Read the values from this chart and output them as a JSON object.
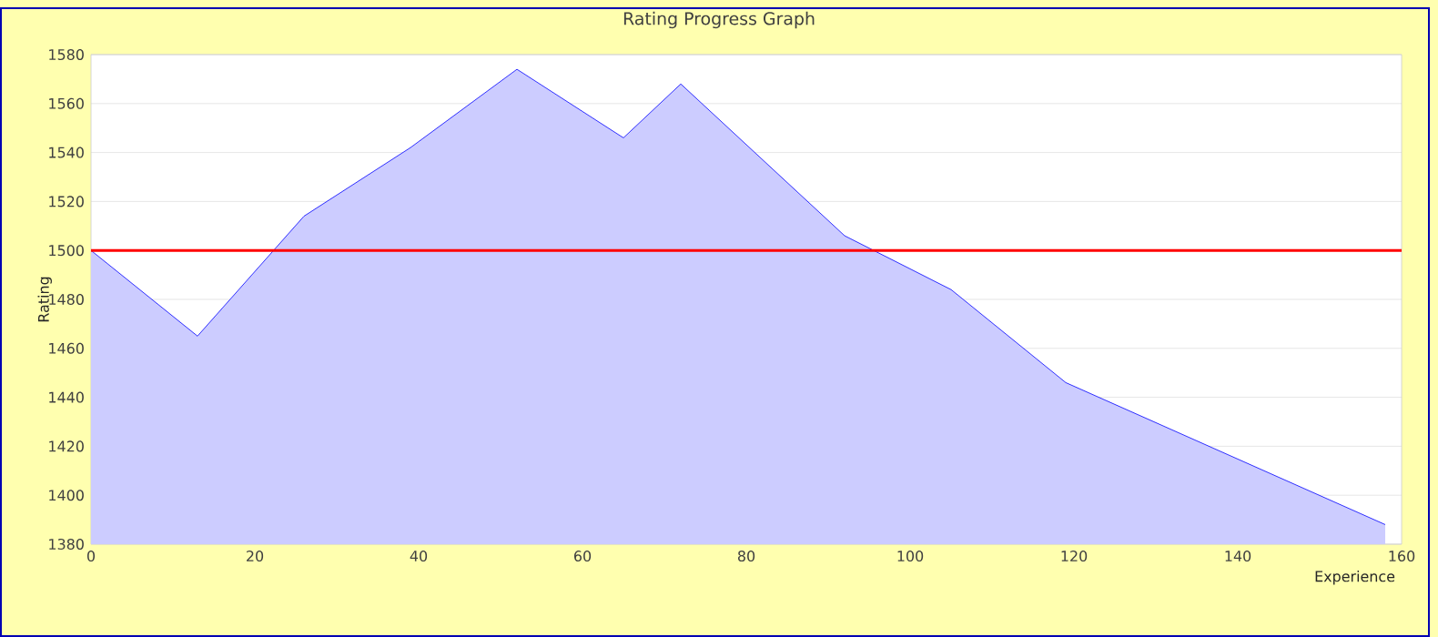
{
  "chart_data": {
    "type": "area",
    "title": "Rating Progress Graph",
    "xlabel": "Experience",
    "ylabel": "Rating",
    "x": [
      0,
      13,
      26,
      39,
      52,
      65,
      72,
      92,
      105,
      119,
      158
    ],
    "series": [
      {
        "color": "#ccccff",
        "values": [
          1500,
          1465,
          1514,
          1542,
          1574,
          1546,
          1568,
          1506,
          1484,
          1446,
          1388
        ]
      }
    ],
    "xlim": [
      0,
      160
    ],
    "xticks": [
      0,
      20,
      40,
      60,
      80,
      100,
      120,
      140,
      160
    ],
    "ylim": [
      1380,
      1580
    ],
    "yticks": [
      1380,
      1400,
      1420,
      1440,
      1460,
      1480,
      1500,
      1520,
      1540,
      1560,
      1580
    ],
    "grid": "y",
    "ref_lines": [
      {
        "axis": "y",
        "value": 1500,
        "color": "#ff0000"
      }
    ]
  }
}
